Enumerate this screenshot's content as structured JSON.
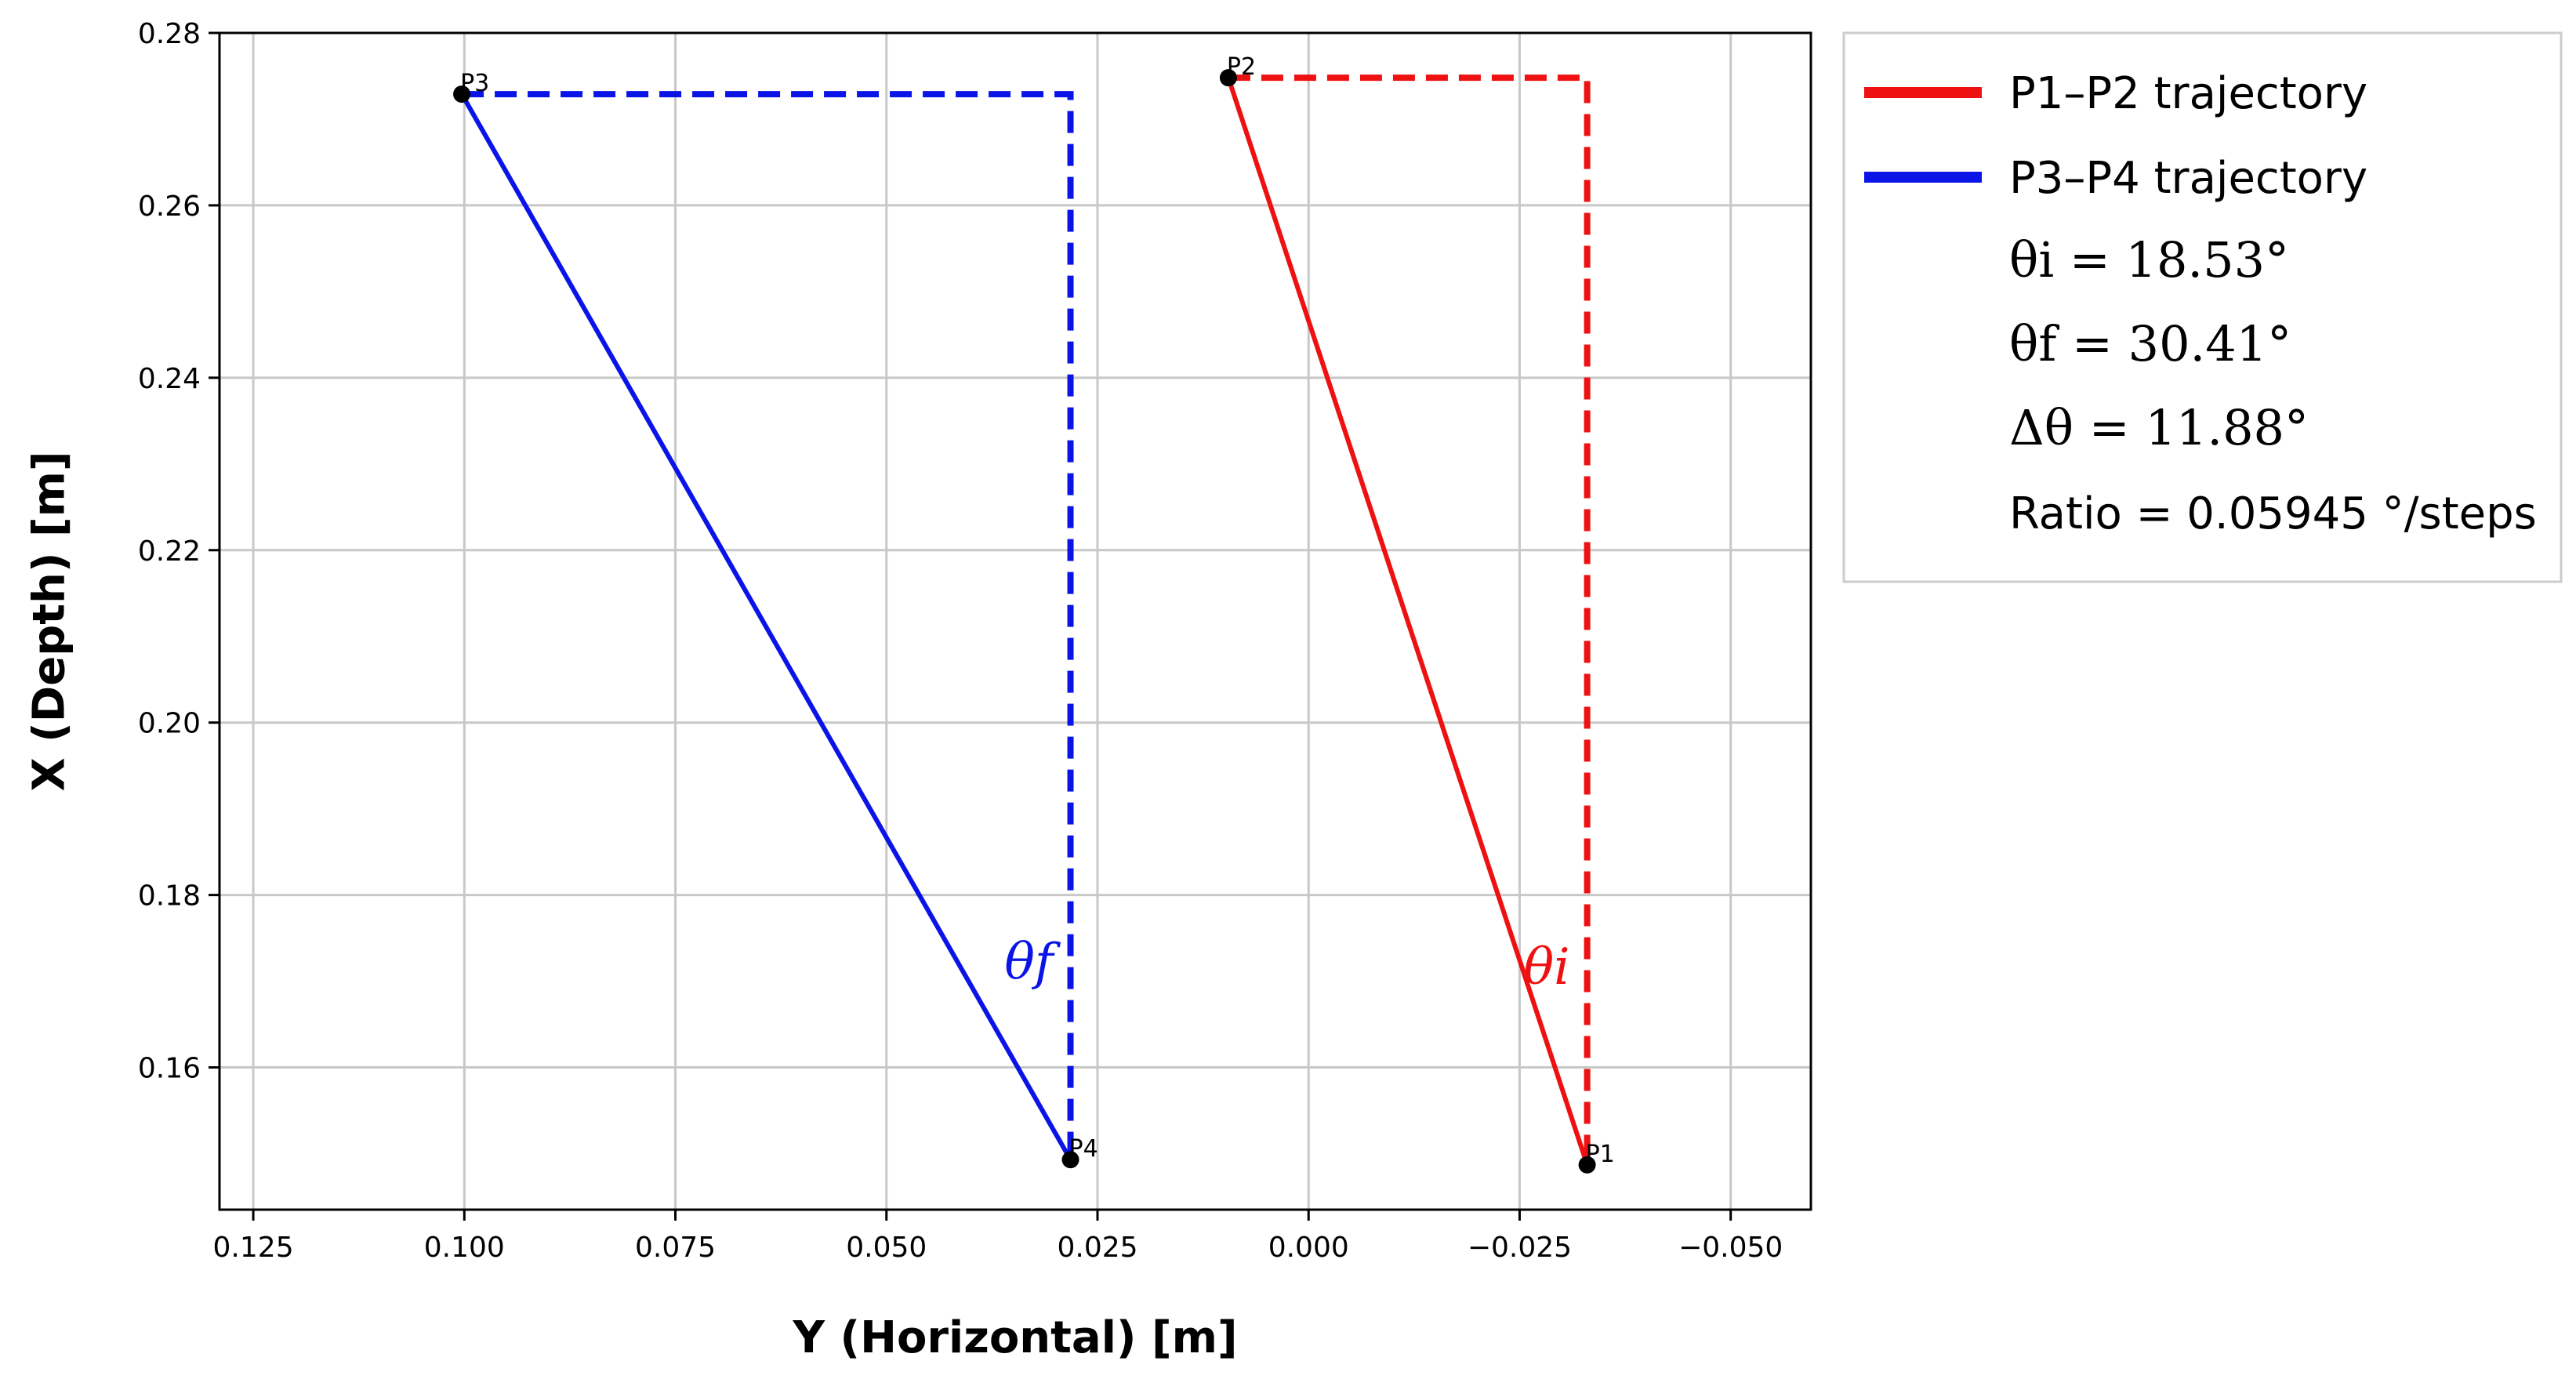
{
  "chart_data": {
    "type": "line",
    "xlabel": "Y (Horizontal) [m]",
    "ylabel": "X (Depth) [m]",
    "xlim": [
      0.129,
      -0.0595
    ],
    "ylim": [
      0.1435,
      0.28
    ],
    "x_inverted": true,
    "grid": true,
    "x_ticks": [
      0.125,
      0.1,
      0.075,
      0.05,
      0.025,
      0.0,
      -0.025,
      -0.05
    ],
    "x_tick_labels": [
      "0.125",
      "0.100",
      "0.075",
      "0.050",
      "0.025",
      "0.000",
      "−0.025",
      "−0.050"
    ],
    "y_ticks": [
      0.16,
      0.18,
      0.2,
      0.22,
      0.24,
      0.26,
      0.28
    ],
    "y_tick_labels": [
      "0.16",
      "0.18",
      "0.20",
      "0.22",
      "0.24",
      "0.26",
      "0.28"
    ],
    "points": [
      {
        "label": "P1",
        "x": -0.033,
        "y": 0.1487
      },
      {
        "label": "P2",
        "x": 0.0095,
        "y": 0.2748
      },
      {
        "label": "P3",
        "x": 0.1003,
        "y": 0.2729
      },
      {
        "label": "P4",
        "x": 0.0282,
        "y": 0.1493
      }
    ],
    "series": [
      {
        "name": "P1–P2 trajectory",
        "color": "#ee1111",
        "from": "P1",
        "to": "P2",
        "theta_label": "θi"
      },
      {
        "name": "P3–P4 trajectory",
        "color": "#0a14e6",
        "from": "P3",
        "to": "P4",
        "theta_label": "θf"
      }
    ],
    "legend_position": "right",
    "legend_entries": [
      {
        "text": "P1–P2 trajectory",
        "color": "#ee1111"
      },
      {
        "text": "P3–P4 trajectory",
        "color": "#0a14e6"
      },
      {
        "text": "θi = 18.53°"
      },
      {
        "text": "θf = 30.41°"
      },
      {
        "text": "Δθ = 11.88°"
      },
      {
        "text": "Ratio = 0.05945 °/steps"
      }
    ],
    "annotations": {
      "theta_i": "18.53°",
      "theta_f": "30.41°",
      "delta_theta": "11.88°",
      "ratio": "Ratio = 0.05945 °/steps"
    }
  }
}
